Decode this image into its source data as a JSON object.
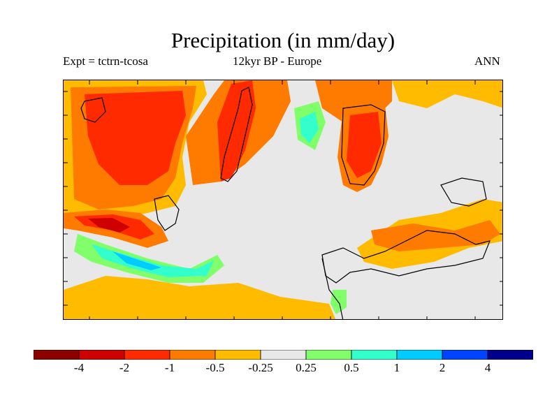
{
  "figure": {
    "title": "Precipitation (in mm/day)",
    "experiment_label": "Expt = tctrn-tcosa",
    "period_label": "12kyr BP - Europe",
    "season_label": "ANN"
  },
  "map": {
    "region": "Europe",
    "variable": "precipitation anomaly",
    "units": "mm/day",
    "background_color": "#e8e8e8",
    "coastline_color": "#000000"
  },
  "colorbar": {
    "colors": [
      "#8c0000",
      "#cf0000",
      "#ff2a00",
      "#ff7b00",
      "#ffbb00",
      "#e8e8e8",
      "#80ff6a",
      "#33ffcc",
      "#00ccff",
      "#0044ff",
      "#00008c"
    ],
    "tick_labels": [
      "-4",
      "-2",
      "-1",
      "-0.5",
      "-0.25",
      "0.25",
      "0.5",
      "1",
      "2",
      "4"
    ]
  }
}
